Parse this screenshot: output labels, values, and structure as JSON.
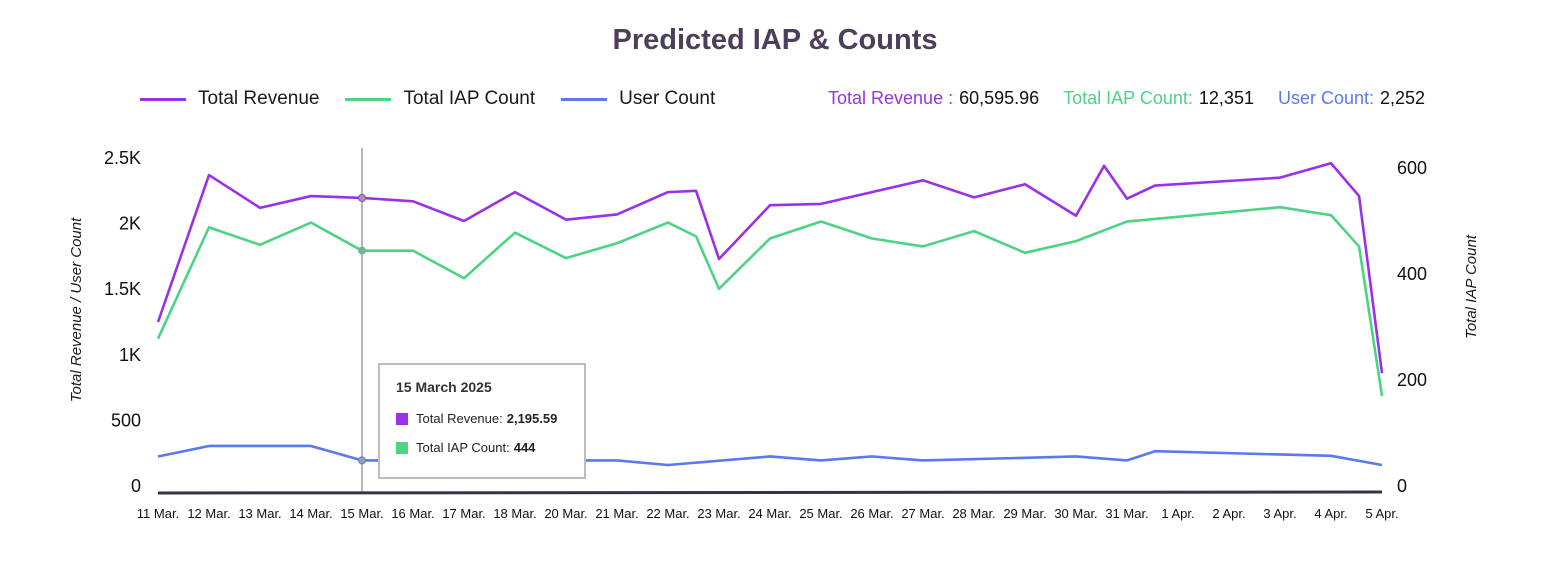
{
  "title": "Predicted IAP & Counts",
  "legend": [
    {
      "label": "Total Revenue",
      "color": "#9b30ea"
    },
    {
      "label": "Total IAP Count",
      "color": "#4cd483"
    },
    {
      "label": "User Count",
      "color": "#5a78ef"
    }
  ],
  "totals": [
    {
      "label": "Total Revenue :",
      "value": "60,595.96",
      "color": "#9b30ea"
    },
    {
      "label": "Total IAP Count:",
      "value": "12,351",
      "color": "#4cd483"
    },
    {
      "label": "User Count:",
      "value": "2,252",
      "color": "#5a78ef"
    }
  ],
  "tooltip": {
    "date": "15 March 2025",
    "rows": [
      {
        "label": "Total Revenue:",
        "value": "2,195.59",
        "color": "#9b30ea"
      },
      {
        "label": "Total IAP Count:",
        "value": "444",
        "color": "#4cd483"
      }
    ]
  },
  "chart_data": {
    "type": "line",
    "title": "Predicted IAP & Counts",
    "categories": [
      "11 Mar.",
      "12 Mar.",
      "13 Mar.",
      "14 Mar.",
      "15 Mar.",
      "16 Mar.",
      "17 Mar.",
      "18 Mar.",
      "20 Mar.",
      "21 Mar.",
      "22 Mar.",
      "23 Mar.",
      "24 Mar.",
      "25 Mar.",
      "26 Mar.",
      "27 Mar.",
      "28 Mar.",
      "29 Mar.",
      "30 Mar.",
      "31 Mar.",
      "1 Apr.",
      "2 Apr.",
      "3 Apr.",
      "4 Apr.",
      "5 Apr."
    ],
    "highlight_category": "15 Mar.",
    "y_left_label": "Total Revenue / User Count",
    "y_left_ticks": [
      "0",
      "500",
      "1K",
      "1.5K",
      "2K",
      "2.5K"
    ],
    "y_left_lim": [
      0,
      2500
    ],
    "y_right_label": "Total IAP Count",
    "y_right_ticks": [
      "0",
      "200",
      "400",
      "600"
    ],
    "y_right_lim": [
      0,
      600
    ],
    "series": [
      {
        "name": "Total Revenue",
        "axis": "left",
        "color": "#9b30ea",
        "points": [
          {
            "x": "11 Mar.",
            "y": 1250
          },
          {
            "x": "12 Mar.",
            "y": 2370
          },
          {
            "x": "13 Mar.",
            "y": 2120
          },
          {
            "x": "14 Mar.",
            "y": 2210
          },
          {
            "x": "15 Mar.",
            "y": 2195.59
          },
          {
            "x": "16 Mar.",
            "y": 2170
          },
          {
            "x": "17 Mar.",
            "y": 2020
          },
          {
            "x": "18 Mar.",
            "y": 2240
          },
          {
            "x": "20 Mar.",
            "y": 2030
          },
          {
            "x": "21 Mar.",
            "y": 2070
          },
          {
            "x": "22 Mar.",
            "y": 2240
          },
          {
            "x": "22 Mar.",
            "y": 2250
          },
          {
            "x": "23 Mar.",
            "y": 1730
          },
          {
            "x": "24 Mar.",
            "y": 2140
          },
          {
            "x": "25 Mar.",
            "y": 2150
          },
          {
            "x": "27 Mar.",
            "y": 2330
          },
          {
            "x": "28 Mar.",
            "y": 2200
          },
          {
            "x": "29 Mar.",
            "y": 2300
          },
          {
            "x": "30 Mar.",
            "y": 2060
          },
          {
            "x": "30 Mar.",
            "y": 2440
          },
          {
            "x": "31 Mar.",
            "y": 2190
          },
          {
            "x": "31 Mar.",
            "y": 2290
          },
          {
            "x": "3 Apr.",
            "y": 2350
          },
          {
            "x": "4 Apr.",
            "y": 2460
          },
          {
            "x": "4 Apr.",
            "y": 2210
          },
          {
            "x": "5 Apr.",
            "y": 860
          }
        ]
      },
      {
        "name": "Total IAP Count",
        "axis": "right",
        "color": "#4cd483",
        "points": [
          {
            "x": "11 Mar.",
            "y": 278
          },
          {
            "x": "12 Mar.",
            "y": 488
          },
          {
            "x": "13 Mar.",
            "y": 455
          },
          {
            "x": "14 Mar.",
            "y": 497
          },
          {
            "x": "15 Mar.",
            "y": 444
          },
          {
            "x": "16 Mar.",
            "y": 444
          },
          {
            "x": "17 Mar.",
            "y": 392
          },
          {
            "x": "18 Mar.",
            "y": 478
          },
          {
            "x": "20 Mar.",
            "y": 430
          },
          {
            "x": "21 Mar.",
            "y": 458
          },
          {
            "x": "22 Mar.",
            "y": 497
          },
          {
            "x": "22 Mar.",
            "y": 471
          },
          {
            "x": "23 Mar.",
            "y": 372
          },
          {
            "x": "24 Mar.",
            "y": 467
          },
          {
            "x": "25 Mar.",
            "y": 499
          },
          {
            "x": "26 Mar.",
            "y": 467
          },
          {
            "x": "27 Mar.",
            "y": 452
          },
          {
            "x": "28 Mar.",
            "y": 481
          },
          {
            "x": "29 Mar.",
            "y": 440
          },
          {
            "x": "30 Mar.",
            "y": 462
          },
          {
            "x": "31 Mar.",
            "y": 499
          },
          {
            "x": "3 Apr.",
            "y": 526
          },
          {
            "x": "4 Apr.",
            "y": 511
          },
          {
            "x": "4 Apr.",
            "y": 452
          },
          {
            "x": "5 Apr.",
            "y": 170
          }
        ]
      },
      {
        "name": "User Count",
        "axis": "left",
        "color": "#5a78ef",
        "points": [
          {
            "x": "11 Mar.",
            "y": 225
          },
          {
            "x": "12 Mar.",
            "y": 305
          },
          {
            "x": "14 Mar.",
            "y": 305
          },
          {
            "x": "15 Mar.",
            "y": 195
          },
          {
            "x": "21 Mar.",
            "y": 195
          },
          {
            "x": "22 Mar.",
            "y": 160
          },
          {
            "x": "24 Mar.",
            "y": 225
          },
          {
            "x": "25 Mar.",
            "y": 195
          },
          {
            "x": "26 Mar.",
            "y": 225
          },
          {
            "x": "27 Mar.",
            "y": 195
          },
          {
            "x": "30 Mar.",
            "y": 225
          },
          {
            "x": "31 Mar.",
            "y": 195
          },
          {
            "x": "31 Mar.",
            "y": 265
          },
          {
            "x": "4 Apr.",
            "y": 230
          },
          {
            "x": "5 Apr.",
            "y": 160
          }
        ]
      }
    ],
    "grid": false
  }
}
